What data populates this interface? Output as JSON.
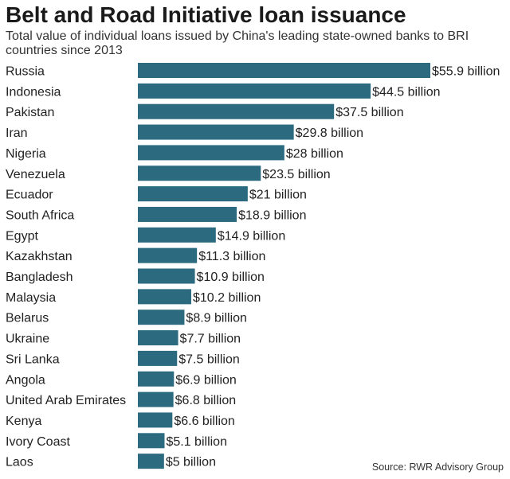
{
  "chart_data": {
    "type": "bar",
    "orientation": "horizontal",
    "title": "Belt and Road Initiative loan issuance",
    "subtitle": "Total value of individual loans issued by China's leading state-owned banks to BRI countries since 2013",
    "categories": [
      "Russia",
      "Indonesia",
      "Pakistan",
      "Iran",
      "Nigeria",
      "Venezuela",
      "Ecuador",
      "South Africa",
      "Egypt",
      "Kazakhstan",
      "Bangladesh",
      "Malaysia",
      "Belarus",
      "Ukraine",
      "Sri Lanka",
      "Angola",
      "United Arab Emirates",
      "Kenya",
      "Ivory Coast",
      "Laos"
    ],
    "values": [
      55.9,
      44.5,
      37.5,
      29.8,
      28,
      23.5,
      21,
      18.9,
      14.9,
      11.3,
      10.9,
      10.2,
      8.9,
      7.7,
      7.5,
      6.9,
      6.8,
      6.6,
      5.1,
      5
    ],
    "value_labels": [
      "$55.9 billion",
      "$44.5 billion",
      "$37.5 billion",
      "$29.8 billion",
      "$28 billion",
      "$23.5 billion",
      "$21 billion",
      "$18.9 billion",
      "$14.9 billion",
      "$11.3 billion",
      "$10.9 billion",
      "$10.2 billion",
      "$8.9 billion",
      "$7.7 billion",
      "$7.5 billion",
      "$6.9 billion",
      "$6.8 billion",
      "$6.6 billion",
      "$5.1 billion",
      "$5 billion"
    ],
    "bar_color": "#2c6a80",
    "xlim": [
      0,
      55.9
    ],
    "grid": false,
    "source": "Source: RWR Advisory Group"
  }
}
